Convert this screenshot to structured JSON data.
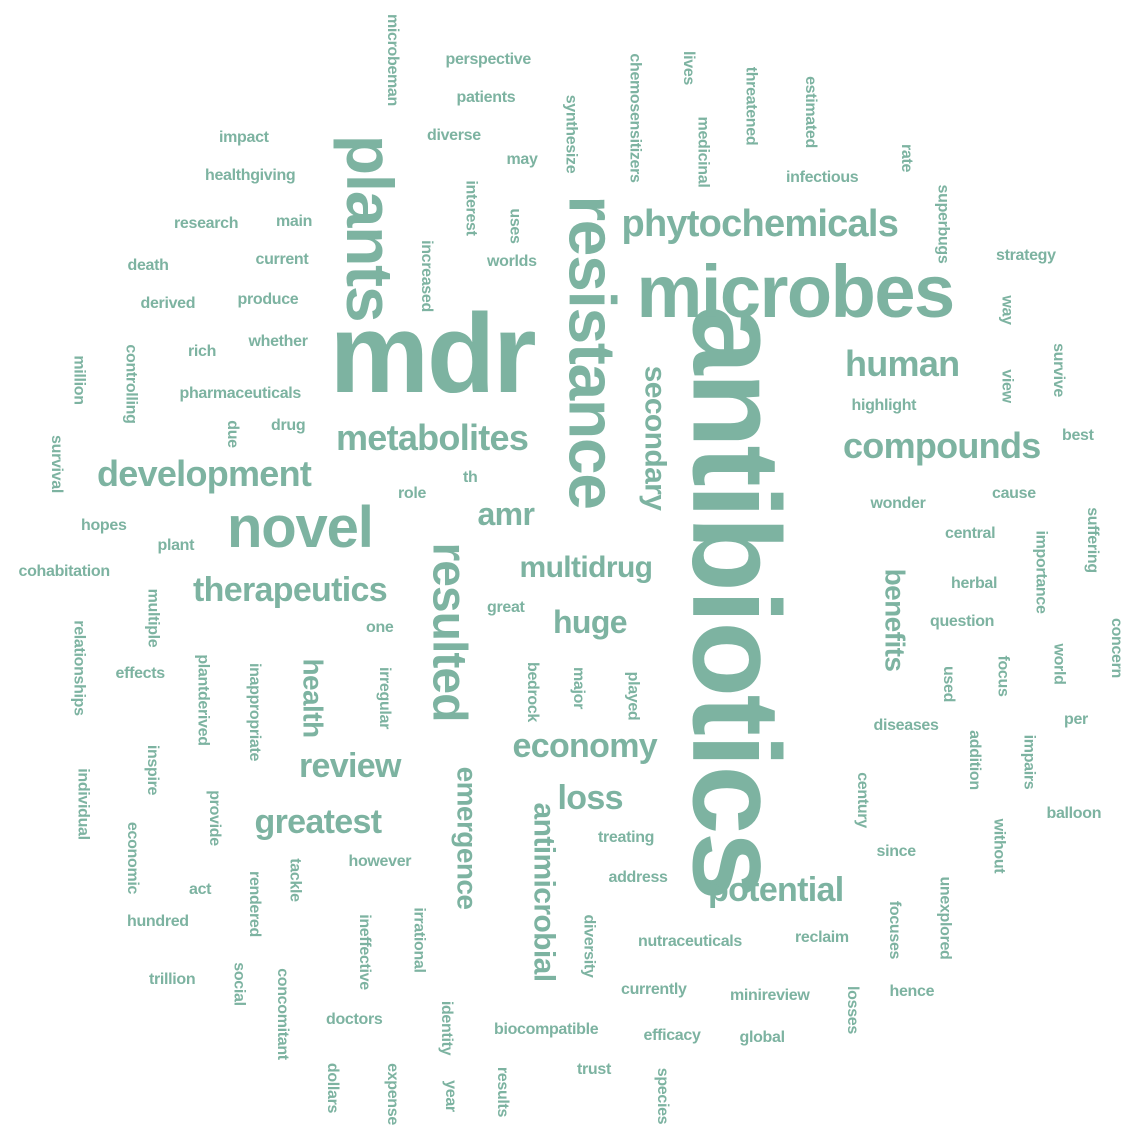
{
  "color": "#7db3a1",
  "words": [
    {
      "t": "antibiotics",
      "r": 1
    },
    {
      "t": "mdr",
      "r": 0
    },
    {
      "t": "microbes",
      "r": 0
    },
    {
      "t": "resistance",
      "r": 1
    },
    {
      "t": "plants",
      "r": 1
    },
    {
      "t": "novel",
      "r": 0
    },
    {
      "t": "resulted",
      "r": 1
    },
    {
      "t": "phytochemicals",
      "r": 0
    },
    {
      "t": "metabolites",
      "r": 0
    },
    {
      "t": "development",
      "r": 0
    },
    {
      "t": "compounds",
      "r": 0
    },
    {
      "t": "human",
      "r": 0
    },
    {
      "t": "secondary",
      "r": 1
    },
    {
      "t": "therapeutics",
      "r": 0
    },
    {
      "t": "antimicrobial",
      "r": 1
    },
    {
      "t": "emergence",
      "r": 1
    },
    {
      "t": "potential",
      "r": 0
    },
    {
      "t": "multidrug",
      "r": 0
    },
    {
      "t": "economy",
      "r": 0
    },
    {
      "t": "benefits",
      "r": 1
    },
    {
      "t": "health",
      "r": 1
    },
    {
      "t": "greatest",
      "r": 0
    },
    {
      "t": "huge",
      "r": 0
    },
    {
      "t": "review",
      "r": 0
    },
    {
      "t": "loss",
      "r": 0
    },
    {
      "t": "amr",
      "r": 0
    },
    {
      "t": "microbeman",
      "r": 1
    },
    {
      "t": "perspective",
      "r": 0
    },
    {
      "t": "chemosensitizers",
      "r": 1
    },
    {
      "t": "lives",
      "r": 1
    },
    {
      "t": "threatened",
      "r": 1
    },
    {
      "t": "estimated",
      "r": 1
    },
    {
      "t": "patients",
      "r": 0
    },
    {
      "t": "synthesize",
      "r": 1
    },
    {
      "t": "medicinal",
      "r": 1
    },
    {
      "t": "impact",
      "r": 0
    },
    {
      "t": "diverse",
      "r": 0
    },
    {
      "t": "may",
      "r": 0
    },
    {
      "t": "rate",
      "r": 1
    },
    {
      "t": "healthgiving",
      "r": 0
    },
    {
      "t": "interest",
      "r": 1
    },
    {
      "t": "infectious",
      "r": 0
    },
    {
      "t": "superbugs",
      "r": 1
    },
    {
      "t": "research",
      "r": 0
    },
    {
      "t": "main",
      "r": 0
    },
    {
      "t": "uses",
      "r": 1
    },
    {
      "t": "increased",
      "r": 1
    },
    {
      "t": "strategy",
      "r": 0
    },
    {
      "t": "death",
      "r": 0
    },
    {
      "t": "current",
      "r": 0
    },
    {
      "t": "worlds",
      "r": 0
    },
    {
      "t": "derived",
      "r": 0
    },
    {
      "t": "produce",
      "r": 0
    },
    {
      "t": "way",
      "r": 1
    },
    {
      "t": "whether",
      "r": 0
    },
    {
      "t": "rich",
      "r": 0
    },
    {
      "t": "survive",
      "r": 1
    },
    {
      "t": "million",
      "r": 1
    },
    {
      "t": "controlling",
      "r": 1
    },
    {
      "t": "view",
      "r": 1
    },
    {
      "t": "pharmaceuticals",
      "r": 0
    },
    {
      "t": "highlight",
      "r": 0
    },
    {
      "t": "drug",
      "r": 0
    },
    {
      "t": "due",
      "r": 1
    },
    {
      "t": "best",
      "r": 0
    },
    {
      "t": "survival",
      "r": 1
    },
    {
      "t": "th",
      "r": 0
    },
    {
      "t": "role",
      "r": 0
    },
    {
      "t": "wonder",
      "r": 0
    },
    {
      "t": "cause",
      "r": 0
    },
    {
      "t": "hopes",
      "r": 0
    },
    {
      "t": "suffering",
      "r": 1
    },
    {
      "t": "central",
      "r": 0
    },
    {
      "t": "importance",
      "r": 1
    },
    {
      "t": "plant",
      "r": 0
    },
    {
      "t": "cohabitation",
      "r": 0
    },
    {
      "t": "herbal",
      "r": 0
    },
    {
      "t": "great",
      "r": 0
    },
    {
      "t": "multiple",
      "r": 1
    },
    {
      "t": "one",
      "r": 0
    },
    {
      "t": "question",
      "r": 0
    },
    {
      "t": "concern",
      "r": 1
    },
    {
      "t": "relationships",
      "r": 1
    },
    {
      "t": "world",
      "r": 1
    },
    {
      "t": "effects",
      "r": 0
    },
    {
      "t": "plantderived",
      "r": 1
    },
    {
      "t": "inappropriate",
      "r": 1
    },
    {
      "t": "irregular",
      "r": 1
    },
    {
      "t": "bedrock",
      "r": 1
    },
    {
      "t": "major",
      "r": 1
    },
    {
      "t": "played",
      "r": 1
    },
    {
      "t": "used",
      "r": 1
    },
    {
      "t": "focus",
      "r": 1
    },
    {
      "t": "diseases",
      "r": 0
    },
    {
      "t": "per",
      "r": 0
    },
    {
      "t": "addition",
      "r": 1
    },
    {
      "t": "impairs",
      "r": 1
    },
    {
      "t": "inspire",
      "r": 1
    },
    {
      "t": "individual",
      "r": 1
    },
    {
      "t": "century",
      "r": 1
    },
    {
      "t": "provide",
      "r": 1
    },
    {
      "t": "balloon",
      "r": 0
    },
    {
      "t": "economic",
      "r": 1
    },
    {
      "t": "treating",
      "r": 0
    },
    {
      "t": "without",
      "r": 1
    },
    {
      "t": "since",
      "r": 0
    },
    {
      "t": "however",
      "r": 0
    },
    {
      "t": "act",
      "r": 0
    },
    {
      "t": "rendered",
      "r": 1
    },
    {
      "t": "tackle",
      "r": 1
    },
    {
      "t": "address",
      "r": 0
    },
    {
      "t": "unexplored",
      "r": 1
    },
    {
      "t": "hundred",
      "r": 0
    },
    {
      "t": "ineffective",
      "r": 1
    },
    {
      "t": "irrational",
      "r": 1
    },
    {
      "t": "diversity",
      "r": 1
    },
    {
      "t": "nutraceuticals",
      "r": 0
    },
    {
      "t": "reclaim",
      "r": 0
    },
    {
      "t": "focuses",
      "r": 1
    },
    {
      "t": "trillion",
      "r": 0
    },
    {
      "t": "social",
      "r": 1
    },
    {
      "t": "concomitant",
      "r": 1
    },
    {
      "t": "currently",
      "r": 0
    },
    {
      "t": "minireview",
      "r": 0
    },
    {
      "t": "losses",
      "r": 1
    },
    {
      "t": "hence",
      "r": 0
    },
    {
      "t": "doctors",
      "r": 0
    },
    {
      "t": "identity",
      "r": 1
    },
    {
      "t": "biocompatible",
      "r": 0
    },
    {
      "t": "efficacy",
      "r": 0
    },
    {
      "t": "global",
      "r": 0
    },
    {
      "t": "dollars",
      "r": 1
    },
    {
      "t": "expense",
      "r": 1
    },
    {
      "t": "year",
      "r": 1
    },
    {
      "t": "results",
      "r": 1
    },
    {
      "t": "trust",
      "r": 0
    },
    {
      "t": "species",
      "r": 1
    }
  ]
}
